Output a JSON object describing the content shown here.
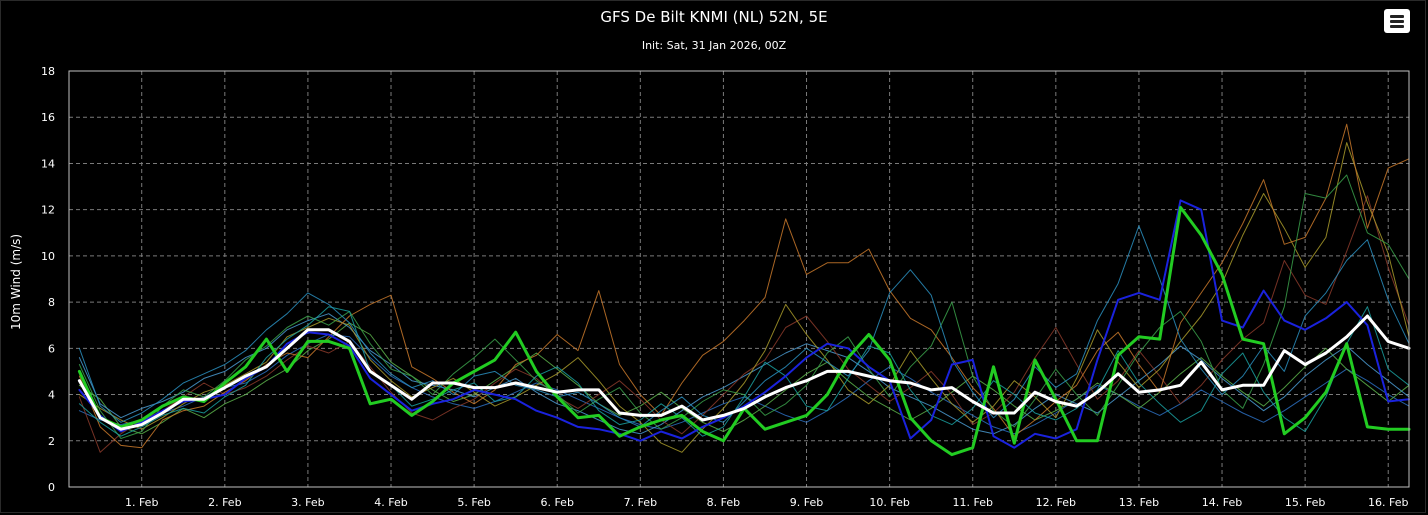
{
  "chart_data": {
    "type": "line",
    "title": "GFS De Bilt KNMI (NL) 52N, 5E",
    "subtitle": "Init: Sat, 31 Jan 2026, 00Z",
    "ylabel": "10m Wind (m/s)",
    "xlabel": "",
    "ylim": [
      0,
      18
    ],
    "yticks": [
      0,
      2,
      4,
      6,
      8,
      10,
      12,
      14,
      16,
      18
    ],
    "xlim": [
      0.125,
      16.25
    ],
    "xtick_values": [
      1,
      2,
      3,
      4,
      5,
      6,
      7,
      8,
      9,
      10,
      11,
      12,
      13,
      14,
      15,
      16
    ],
    "xtick_labels": [
      "1. Feb",
      "2. Feb",
      "3. Feb",
      "4. Feb",
      "5. Feb",
      "6. Feb",
      "7. Feb",
      "8. Feb",
      "9. Feb",
      "10. Feb",
      "11. Feb",
      "12. Feb",
      "13. Feb",
      "14. Feb",
      "15. Feb",
      "16. Feb"
    ],
    "x": [
      0.25,
      0.5,
      0.75,
      1,
      1.25,
      1.5,
      1.75,
      2,
      2.25,
      2.5,
      2.75,
      3,
      3.25,
      3.5,
      3.75,
      4,
      4.25,
      4.5,
      4.75,
      5,
      5.25,
      5.5,
      5.75,
      6,
      6.25,
      6.5,
      6.75,
      7,
      7.25,
      7.5,
      7.75,
      8,
      8.25,
      8.5,
      8.75,
      9,
      9.25,
      9.5,
      9.75,
      10,
      10.25,
      10.5,
      10.75,
      11,
      11.25,
      11.5,
      11.75,
      12,
      12.25,
      12.5,
      12.75,
      13,
      13.25,
      13.5,
      13.75,
      14,
      14.25,
      14.5,
      14.75,
      15,
      15.25,
      15.5,
      15.75,
      16,
      16.25
    ],
    "grid": true,
    "legend": "none",
    "background": "#000000",
    "series": [
      {
        "color": "#ffffff",
        "width": 3,
        "values": [
          4.6,
          3.0,
          2.5,
          2.7,
          3.2,
          3.8,
          3.8,
          4.3,
          4.8,
          5.2,
          6.0,
          6.8,
          6.8,
          6.3,
          5.0,
          4.4,
          3.8,
          4.5,
          4.5,
          4.3,
          4.3,
          4.5,
          4.3,
          4.1,
          4.2,
          4.2,
          3.2,
          3.1,
          3.1,
          3.5,
          2.9,
          3.1,
          3.4,
          3.9,
          4.3,
          4.6,
          5.0,
          5.0,
          4.8,
          4.6,
          4.5,
          4.2,
          4.3,
          3.7,
          3.2,
          3.2,
          4.1,
          3.7,
          3.5,
          4.1,
          4.9,
          4.1,
          4.2,
          4.4,
          5.4,
          4.2,
          4.4,
          4.4,
          5.9,
          5.3,
          5.8,
          6.5,
          7.4,
          6.3,
          6.0
        ]
      },
      {
        "color": "#22cc22",
        "width": 3,
        "values": [
          5.0,
          3.0,
          2.6,
          2.9,
          3.5,
          3.9,
          3.7,
          4.5,
          5.2,
          6.4,
          5.0,
          6.3,
          6.3,
          6.0,
          3.6,
          3.8,
          3.1,
          3.7,
          4.5,
          5.0,
          5.5,
          6.7,
          5.0,
          3.9,
          3.0,
          3.1,
          2.2,
          2.6,
          2.9,
          3.1,
          2.4,
          2.0,
          3.4,
          2.5,
          2.8,
          3.1,
          4.0,
          5.6,
          6.6,
          5.5,
          3.0,
          2.0,
          1.4,
          1.7,
          5.2,
          1.9,
          5.5,
          3.8,
          2.0,
          2.0,
          5.7,
          6.5,
          6.4,
          12.1,
          10.9,
          9.2,
          6.4,
          6.2,
          2.3,
          3.0,
          4.1,
          6.2,
          2.6,
          2.5,
          2.5
        ]
      },
      {
        "color": "#1a22dd",
        "width": 2,
        "values": [
          4.2,
          3.1,
          2.4,
          2.8,
          3.3,
          3.7,
          3.8,
          4.0,
          4.7,
          5.2,
          6.2,
          6.7,
          6.6,
          6.1,
          4.7,
          4.0,
          3.3,
          3.6,
          3.8,
          4.2,
          4.0,
          3.8,
          3.3,
          3.0,
          2.6,
          2.5,
          2.3,
          2.0,
          2.4,
          2.1,
          2.6,
          3.0,
          3.5,
          4.1,
          4.8,
          5.6,
          6.2,
          6.0,
          5.2,
          4.6,
          2.1,
          2.9,
          5.3,
          5.5,
          2.2,
          1.7,
          2.3,
          2.1,
          2.5,
          5.5,
          8.1,
          8.4,
          8.1,
          12.4,
          12.0,
          7.2,
          6.9,
          8.5,
          7.2,
          6.8,
          7.3,
          8.0,
          7.0,
          3.7,
          3.8
        ]
      },
      {
        "color": "#2a8fbf",
        "width": 1,
        "values": [
          6.0,
          3.5,
          2.8,
          3.2,
          3.8,
          4.5,
          4.9,
          5.3,
          5.9,
          6.8,
          7.5,
          8.4,
          7.9,
          7.1,
          5.8,
          4.9,
          4.3,
          4.6,
          4.0,
          4.8,
          5.0,
          4.4,
          4.2,
          3.9,
          4.1,
          3.6,
          3.0,
          2.6,
          3.3,
          3.9,
          3.1,
          2.8,
          3.7,
          4.6,
          5.2,
          6.0,
          5.4,
          4.8,
          5.9,
          8.4,
          9.4,
          8.3,
          5.5,
          4.1,
          3.0,
          3.8,
          5.2,
          4.3,
          4.9,
          7.2,
          8.8,
          11.3,
          9.0,
          6.4,
          5.1,
          4.0,
          4.8,
          6.1,
          5.0,
          7.4,
          8.4,
          9.8,
          10.7,
          8.1,
          6.2
        ]
      },
      {
        "color": "#1aa0a0",
        "width": 1,
        "values": [
          3.6,
          2.8,
          2.2,
          2.6,
          3.1,
          3.4,
          3.2,
          3.9,
          4.4,
          5.6,
          6.4,
          7.0,
          7.8,
          7.6,
          5.0,
          4.4,
          3.5,
          3.8,
          4.2,
          4.5,
          3.7,
          3.9,
          4.8,
          5.2,
          4.5,
          3.3,
          2.7,
          2.9,
          3.6,
          3.0,
          2.2,
          2.6,
          3.9,
          5.4,
          4.8,
          3.5,
          3.3,
          4.7,
          6.1,
          5.8,
          4.2,
          3.1,
          2.7,
          3.4,
          4.6,
          4.0,
          3.2,
          2.9,
          3.4,
          4.2,
          5.9,
          4.5,
          3.6,
          2.8,
          3.3,
          4.9,
          5.8,
          4.1,
          3.0,
          2.4,
          3.9,
          6.2,
          7.8,
          5.1,
          4.4
        ]
      },
      {
        "color": "#3aa04a",
        "width": 1,
        "values": [
          5.3,
          3.3,
          2.1,
          2.4,
          3.5,
          4.2,
          3.9,
          4.6,
          5.5,
          6.1,
          6.9,
          7.4,
          7.0,
          7.6,
          6.2,
          5.1,
          4.8,
          4.0,
          4.9,
          5.6,
          6.4,
          5.5,
          4.6,
          4.0,
          3.2,
          3.8,
          4.3,
          3.2,
          2.5,
          3.0,
          3.7,
          4.2,
          4.0,
          3.1,
          3.6,
          4.4,
          5.8,
          6.5,
          5.1,
          3.9,
          5.2,
          6.1,
          8.0,
          4.8,
          3.3,
          2.6,
          3.8,
          5.1,
          4.0,
          3.1,
          4.4,
          5.8,
          6.9,
          7.6,
          6.3,
          4.2,
          3.4,
          5.3,
          7.8,
          12.7,
          12.5,
          13.5,
          11.0,
          10.5,
          9.0
        ]
      },
      {
        "color": "#c8782a",
        "width": 1,
        "values": [
          4.8,
          2.6,
          1.8,
          1.7,
          2.9,
          3.3,
          3.5,
          4.1,
          4.6,
          5.3,
          5.8,
          5.6,
          6.5,
          7.4,
          7.9,
          8.3,
          5.2,
          4.7,
          4.1,
          3.6,
          4.2,
          5.3,
          5.7,
          6.6,
          5.9,
          8.5,
          5.3,
          4.0,
          3.1,
          4.5,
          5.7,
          6.3,
          7.2,
          8.2,
          11.6,
          9.2,
          9.7,
          9.7,
          10.3,
          8.5,
          7.3,
          6.8,
          5.6,
          4.3,
          3.4,
          2.2,
          2.9,
          3.7,
          4.4,
          5.9,
          6.7,
          5.3,
          4.1,
          7.1,
          8.4,
          9.7,
          11.4,
          13.3,
          10.5,
          10.8,
          12.5,
          15.7,
          11.2,
          13.8,
          14.2
        ]
      },
      {
        "color": "#a89a2a",
        "width": 1,
        "values": [
          4.0,
          3.4,
          2.9,
          2.5,
          3.0,
          3.6,
          4.1,
          4.4,
          4.9,
          5.4,
          6.5,
          6.9,
          7.3,
          7.0,
          5.5,
          4.6,
          3.9,
          4.3,
          4.7,
          4.1,
          3.5,
          3.9,
          4.4,
          4.9,
          5.6,
          4.6,
          3.5,
          2.8,
          1.9,
          1.5,
          2.5,
          3.4,
          4.5,
          5.9,
          7.9,
          6.6,
          5.5,
          4.2,
          3.6,
          4.4,
          5.9,
          4.7,
          3.6,
          2.8,
          3.5,
          4.6,
          3.9,
          3.0,
          4.7,
          6.8,
          5.4,
          4.3,
          5.1,
          6.3,
          7.4,
          8.8,
          10.9,
          12.7,
          11.2,
          9.5,
          10.8,
          14.9,
          12.3,
          10.1,
          6.5
        ]
      },
      {
        "color": "#8a3a2a",
        "width": 1,
        "values": [
          3.9,
          1.5,
          2.3,
          2.9,
          3.3,
          3.9,
          4.5,
          4.0,
          4.3,
          4.8,
          5.5,
          6.1,
          5.8,
          6.3,
          5.2,
          4.1,
          3.2,
          2.9,
          3.4,
          3.8,
          4.5,
          5.1,
          4.7,
          3.9,
          3.4,
          4.0,
          4.6,
          3.8,
          2.9,
          2.3,
          3.1,
          4.0,
          4.9,
          5.5,
          6.9,
          7.4,
          6.3,
          5.1,
          4.4,
          3.7,
          4.3,
          5.0,
          4.0,
          2.7,
          3.2,
          4.1,
          5.6,
          6.9,
          5.3,
          3.8,
          4.6,
          5.9,
          4.8,
          3.6,
          4.4,
          5.5,
          6.4,
          7.1,
          9.8,
          8.3,
          7.9,
          10.2,
          12.6,
          9.5,
          7.0
        ]
      },
      {
        "color": "#4a9ad0",
        "width": 1,
        "values": [
          5.6,
          3.6,
          3.0,
          3.4,
          3.7,
          4.1,
          4.7,
          5.0,
          5.6,
          6.0,
          6.8,
          7.2,
          7.5,
          6.9,
          5.9,
          5.3,
          4.6,
          4.4,
          4.2,
          3.9,
          4.3,
          4.7,
          4.1,
          3.6,
          3.3,
          2.9,
          2.5,
          2.3,
          2.7,
          3.3,
          3.9,
          4.3,
          4.8,
          5.3,
          5.8,
          6.2,
          5.9,
          5.6,
          5.0,
          4.3,
          3.9,
          3.5,
          3.0,
          2.5,
          2.3,
          2.7,
          3.4,
          4.0,
          3.6,
          3.2,
          3.9,
          4.6,
          5.3,
          6.1,
          5.5,
          4.7,
          4.0,
          3.3,
          3.9,
          4.8,
          5.5,
          6.1,
          5.3,
          4.6,
          3.9
        ]
      },
      {
        "color": "#5ab04a",
        "width": 1,
        "values": [
          4.4,
          3.8,
          2.6,
          2.3,
          2.8,
          3.4,
          3.0,
          3.6,
          4.0,
          4.6,
          5.1,
          5.9,
          6.4,
          7.1,
          6.6,
          5.4,
          4.8,
          4.2,
          3.7,
          4.0,
          4.6,
          5.2,
          5.8,
          5.1,
          4.4,
          3.6,
          3.1,
          3.5,
          4.1,
          3.4,
          2.8,
          2.4,
          2.9,
          3.5,
          4.2,
          4.9,
          5.4,
          4.6,
          3.9,
          3.4,
          2.9,
          3.4,
          4.1,
          4.8,
          4.2,
          3.5,
          2.9,
          3.3,
          3.8,
          4.5,
          4.0,
          3.4,
          4.1,
          4.9,
          5.6,
          4.8,
          4.1,
          3.5,
          4.3,
          5.2,
          6.0,
          5.1,
          4.4,
          3.7,
          4.4
        ]
      },
      {
        "color": "#2c6fc0",
        "width": 1,
        "values": [
          3.3,
          2.9,
          2.7,
          2.9,
          3.2,
          3.5,
          3.9,
          4.3,
          4.5,
          5.0,
          5.7,
          6.2,
          6.6,
          6.5,
          5.6,
          4.8,
          4.3,
          3.9,
          3.6,
          3.4,
          3.7,
          4.1,
          4.5,
          4.2,
          3.8,
          3.4,
          3.0,
          2.7,
          2.5,
          2.8,
          3.2,
          3.6,
          3.9,
          3.5,
          3.1,
          2.8,
          3.3,
          3.9,
          4.6,
          5.2,
          4.7,
          4.1,
          3.6,
          3.1,
          2.6,
          2.3,
          2.7,
          3.2,
          3.8,
          4.4,
          4.0,
          3.5,
          3.1,
          3.6,
          4.2,
          3.7,
          3.2,
          2.8,
          3.3,
          3.9,
          4.5,
          5.1,
          4.6,
          4.0,
          3.5
        ]
      }
    ]
  },
  "ui": {
    "menu_icon": "hamburger-menu-icon"
  }
}
